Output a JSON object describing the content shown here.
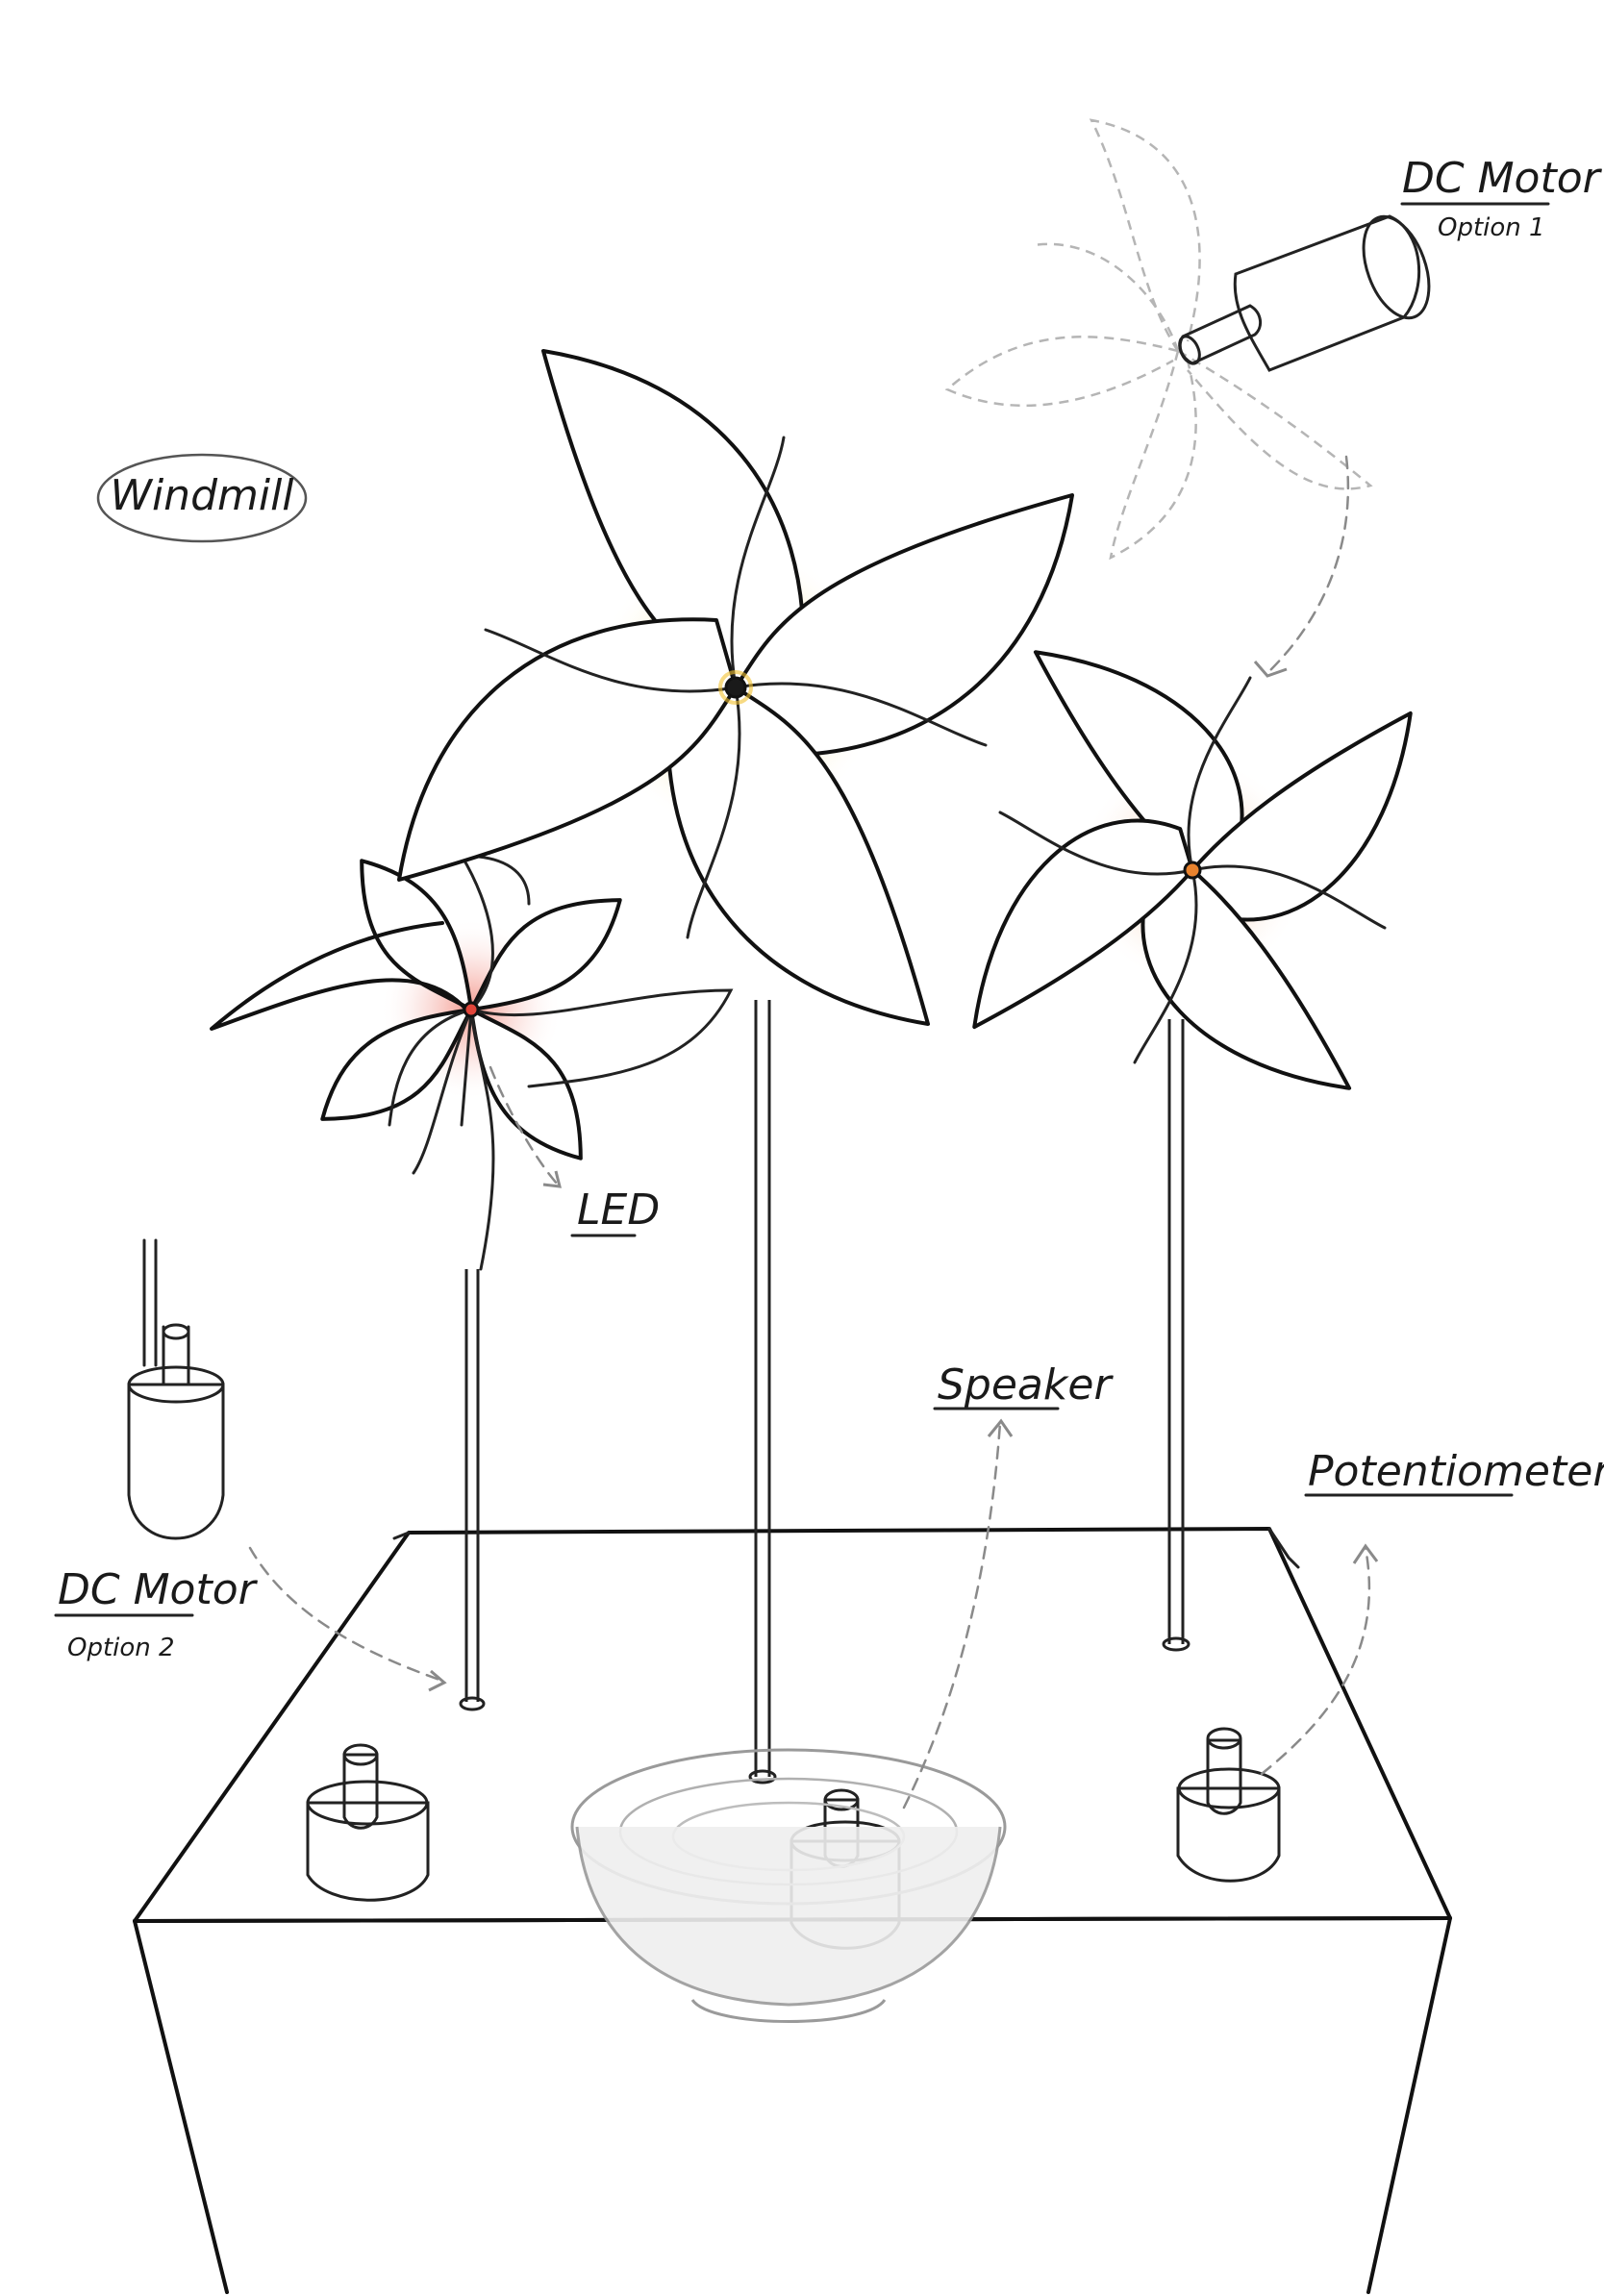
{
  "labels": {
    "title": "Windmill",
    "led": "LED",
    "dc_motor_option1": "DC Motor",
    "option1": "Option 1",
    "dc_motor_option2": "DC Motor",
    "option2": "Option 2",
    "speaker": "Speaker",
    "potentiometer": "Potentiometer"
  },
  "colors": {
    "ink": "#111111",
    "dashed_arrow": "#8a8a8a",
    "led_glow_center": "#f5c53a",
    "led_glow_left": "#ef8a80",
    "led_glow_right": "#f2a070",
    "shading": "#d9d9d9"
  },
  "components": {
    "pinwheels": [
      "left-pinwheel",
      "center-pinwheel",
      "right-pinwheel"
    ],
    "knobs": [
      "left-knob",
      "center-knob",
      "right-knob"
    ]
  }
}
